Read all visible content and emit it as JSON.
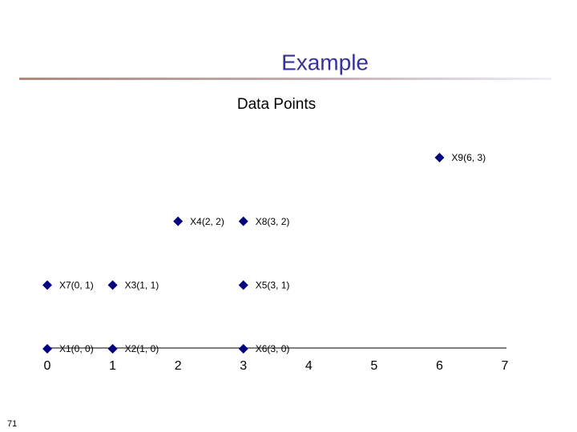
{
  "slide_title": "Example",
  "page_number": "71",
  "chart_data": {
    "type": "scatter",
    "title": "Data Points",
    "x": [
      0,
      1,
      1,
      2,
      3,
      3,
      0,
      3,
      6
    ],
    "values": [
      0,
      0,
      1,
      2,
      1,
      0,
      1,
      2,
      3
    ],
    "point_labels": [
      "X1(0, 0)",
      "X2(1, 0)",
      "X3(1, 1)",
      "X4(2, 2)",
      "X5(3, 1)",
      "X6(3, 0)",
      "X7(0, 1)",
      "X8(3, 2)",
      "X9(6, 3)"
    ],
    "color": "#000080",
    "xlim": [
      0,
      7
    ],
    "xticks": [
      0,
      1,
      2,
      3,
      4,
      5,
      6,
      7
    ],
    "ylim": [
      0,
      3
    ]
  }
}
